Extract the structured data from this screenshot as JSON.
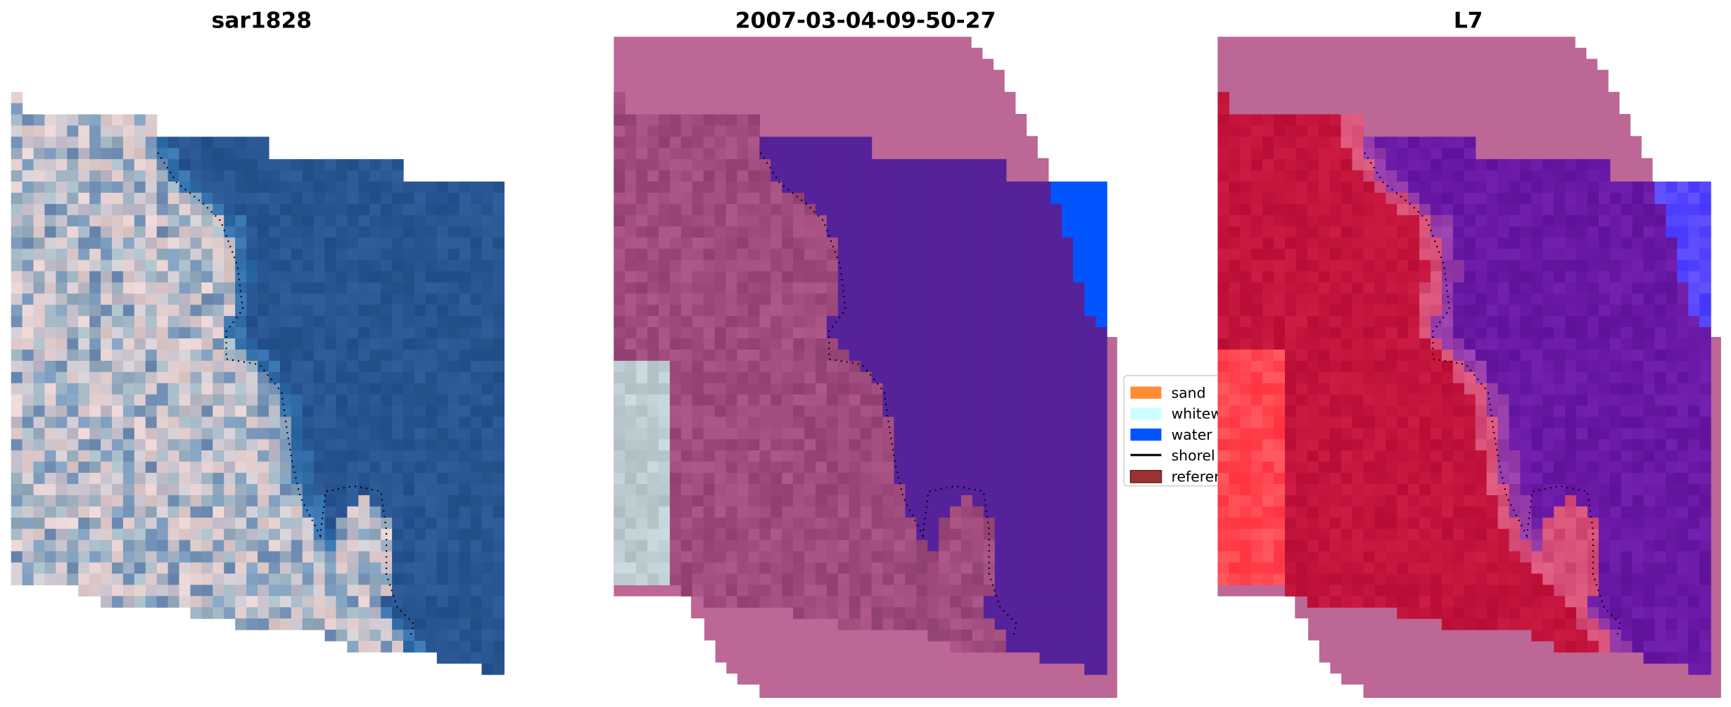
{
  "panels": [
    {
      "title": "sar1828",
      "kind": "rgb"
    },
    {
      "title": "2007-03-04-09-50-27",
      "kind": "classified"
    },
    {
      "title": "L7",
      "kind": "classified-l7"
    }
  ],
  "legend": {
    "items": [
      {
        "label": "sand",
        "color": "#ff8c33",
        "type": "patch"
      },
      {
        "label": "whitew",
        "color": "#ccffff",
        "type": "patch"
      },
      {
        "label": "water",
        "color": "#0055ff",
        "type": "patch"
      },
      {
        "label": "shorel",
        "color": "#000000",
        "type": "line"
      },
      {
        "label": "referer",
        "color": "#993333",
        "type": "patch"
      }
    ]
  },
  "colors": {
    "nodata": "#bc6795",
    "shoreline": "#000000"
  }
}
